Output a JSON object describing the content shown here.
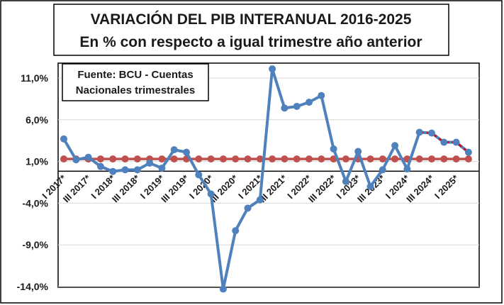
{
  "chart_data": {
    "type": "line",
    "title": "VARIACIÓN DEL PIB INTERANUAL 2016-2025",
    "subtitle": "En % con respecto a igual trimestre año anterior",
    "source_label": [
      "Fuente: BCU - Cuentas",
      "Nacionales trimestrales"
    ],
    "ylim": [
      -14,
      11
    ],
    "yticks": [
      "11,0%",
      "6,0%",
      "1,0%",
      "-4,0%",
      "-9,0%",
      "-14,0%"
    ],
    "ytick_values": [
      11,
      6,
      1,
      -4,
      -9,
      -14
    ],
    "grid": true,
    "x_tick_labels": [
      {
        "label": "I 2017*",
        "index": 0
      },
      {
        "label": "III 2017*",
        "index": 2
      },
      {
        "label": "I 2018*",
        "index": 4
      },
      {
        "label": "III 2018*",
        "index": 6
      },
      {
        "label": "I 2019*",
        "index": 8
      },
      {
        "label": "III 2019*",
        "index": 10
      },
      {
        "label": "I 2020*",
        "index": 12
      },
      {
        "label": "III 2020*",
        "index": 14
      },
      {
        "label": "I 2021*",
        "index": 16
      },
      {
        "label": "III 2021*",
        "index": 18
      },
      {
        "label": "I 2022*",
        "index": 20
      },
      {
        "label": "III 2022*",
        "index": 22
      },
      {
        "label": "I 2023*",
        "index": 24
      },
      {
        "label": "III 2023*",
        "index": 26
      },
      {
        "label": "I 2024*",
        "index": 28
      },
      {
        "label": "III 2024*",
        "index": 30
      },
      {
        "label": "I 2025*",
        "index": 32
      }
    ],
    "series": [
      {
        "color": "#4f81bd",
        "values": [
          3.7,
          1.2,
          1.5,
          0.4,
          -0.2,
          0.0,
          0.0,
          0.8,
          0.2,
          2.4,
          2.1,
          -0.6,
          -2.9,
          -14.3,
          -7.3,
          -4.6,
          -3.6,
          12.1,
          7.4,
          7.6,
          8.1,
          8.9,
          2.5,
          -1.4,
          2.2,
          -2.0,
          0.0,
          2.9,
          0.1,
          4.5,
          4.4,
          3.3,
          3.3,
          2.1
        ],
        "dashed_tail_color": "#e00000",
        "dashed_from_index": 29
      },
      {
        "color": "#c0504d",
        "values": [
          1.3,
          1.3,
          1.3,
          1.3,
          1.3,
          1.3,
          1.3,
          1.3,
          1.3,
          1.3,
          1.3,
          1.3,
          1.3,
          1.3,
          1.3,
          1.3,
          1.3,
          1.3,
          1.3,
          1.3,
          1.3,
          1.3,
          1.3,
          1.3,
          1.3,
          1.3,
          1.3,
          1.3,
          1.3,
          1.3,
          1.3,
          1.3,
          1.3,
          1.3
        ]
      }
    ]
  }
}
